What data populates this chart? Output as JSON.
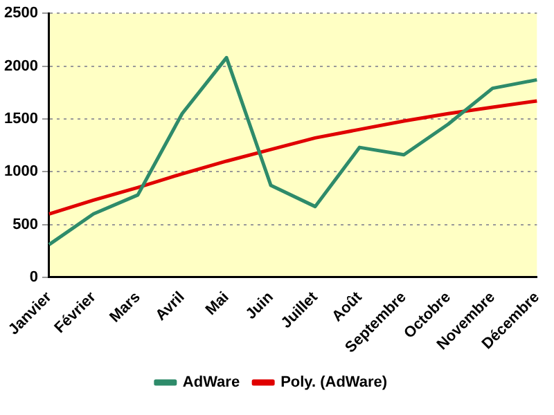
{
  "chart_data": {
    "type": "line",
    "categories": [
      "Janvier",
      "Février",
      "Mars",
      "Avril",
      "Mai",
      "Juin",
      "Juillet",
      "Août",
      "Septembre",
      "Octobre",
      "Novembre",
      "Décembre"
    ],
    "series": [
      {
        "name": "AdWare",
        "color": "#2e8b6a",
        "values": [
          310,
          600,
          780,
          1550,
          2080,
          870,
          670,
          1230,
          1160,
          1450,
          1790,
          1870
        ]
      },
      {
        "name": "Poly. (AdWare)",
        "color": "#e00000",
        "values": [
          600,
          730,
          850,
          980,
          1100,
          1210,
          1320,
          1400,
          1480,
          1550,
          1610,
          1670
        ]
      }
    ],
    "ylim": [
      0,
      2500
    ],
    "yticks": [
      0,
      500,
      1000,
      1500,
      2000,
      2500
    ],
    "grid": "y",
    "legend": "bottom",
    "marker": "none"
  }
}
